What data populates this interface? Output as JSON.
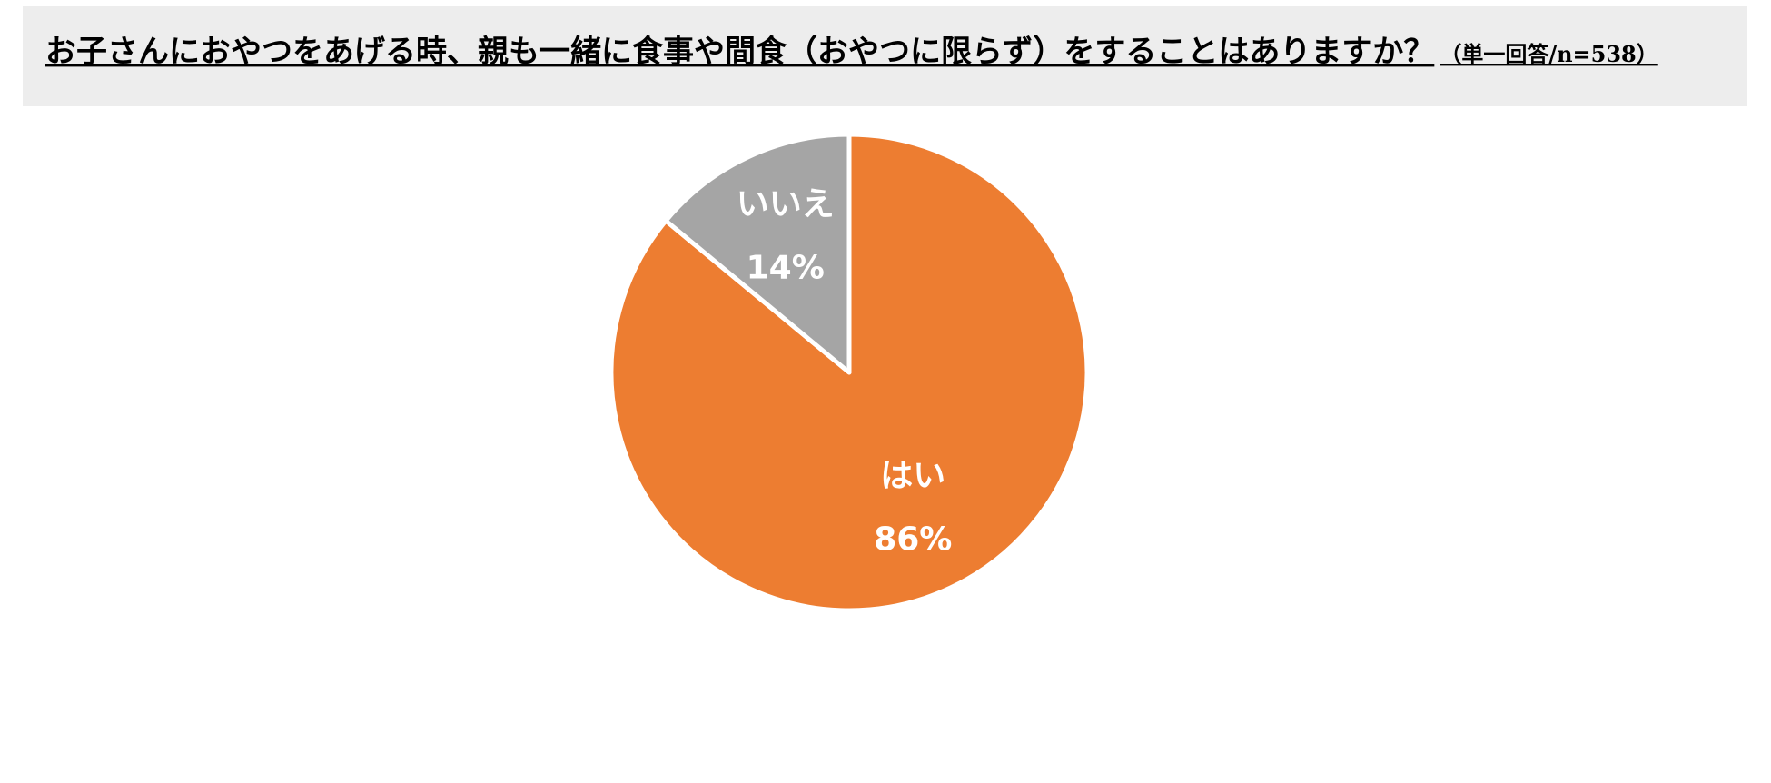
{
  "chart_data": {
    "type": "pie",
    "title": "お子さんにおやつをあげる時、親も一緒に食事や間食（おやつに限らず）をすることはありますか？",
    "subtitle": "（単一回答/n=538）",
    "categories": [
      "はい",
      "いいえ"
    ],
    "values": [
      86,
      14
    ],
    "value_labels": [
      "86%",
      "14%"
    ],
    "colors": [
      "#ed7d31",
      "#a5a5a5"
    ]
  }
}
